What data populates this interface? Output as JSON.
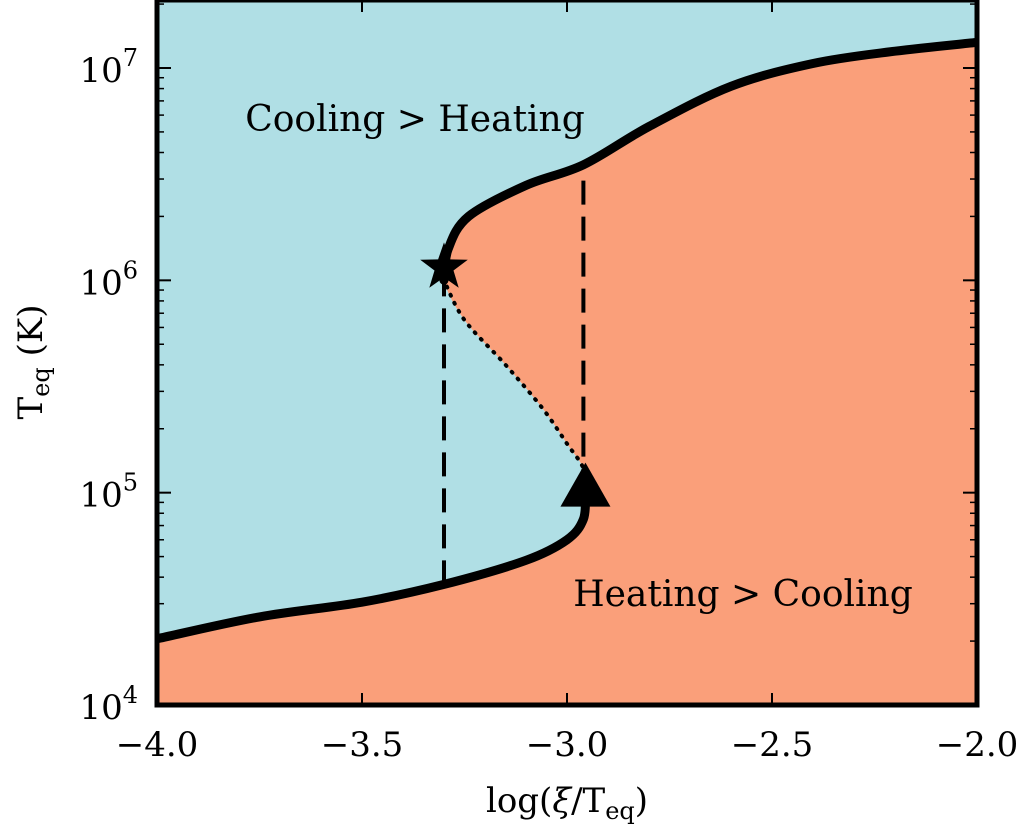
{
  "chart_data": {
    "type": "line",
    "title": "",
    "xlabel": {
      "base": "log(",
      "symbol": "ξ",
      "mid": "/T",
      "sub": "eq",
      "end": ")"
    },
    "ylabel": {
      "base": "T",
      "sub": "eq",
      "unit": " (K)"
    },
    "xlim": [
      -4.0,
      -2.0
    ],
    "ylim": [
      10000,
      20000000
    ],
    "y_scale": "log",
    "x_ticks": [
      -4.0,
      -3.5,
      -3.0,
      -2.5,
      -2.0
    ],
    "x_tick_labels": [
      "−4.0",
      "−3.5",
      "−3.0",
      "−2.5",
      "−2.0"
    ],
    "y_ticks": [
      {
        "value": 10000,
        "base": "10",
        "exp": "4"
      },
      {
        "value": 100000,
        "base": "10",
        "exp": "5"
      },
      {
        "value": 1000000,
        "base": "10",
        "exp": "6"
      },
      {
        "value": 10000000,
        "base": "10",
        "exp": "7"
      }
    ],
    "colors": {
      "cooling": "#b0dfe5",
      "heating": "#fa9f7a",
      "curve": "#000000"
    },
    "regions": [
      {
        "label": "Cooling > Heating",
        "color": "#b0dfe5"
      },
      {
        "label": "Heating > Cooling",
        "color": "#fa9f7a"
      }
    ],
    "series": [
      {
        "style": "solid",
        "points": [
          [
            -4.0,
            20500
          ],
          [
            -3.75,
            26000
          ],
          [
            -3.5,
            30500
          ],
          [
            -3.3,
            37000
          ],
          [
            -3.1,
            48000
          ],
          [
            -3.0,
            60000
          ],
          [
            -2.96,
            75000
          ],
          [
            -2.955,
            100000
          ]
        ]
      },
      {
        "style": "dotted",
        "points": [
          [
            -2.955,
            100000
          ],
          [
            -2.96,
            130000
          ],
          [
            -3.0,
            170000
          ],
          [
            -3.06,
            250000
          ],
          [
            -3.15,
            400000
          ],
          [
            -3.25,
            650000
          ],
          [
            -3.3,
            1000000
          ]
        ]
      },
      {
        "style": "solid",
        "points": [
          [
            -3.3,
            1000000
          ],
          [
            -3.29,
            1400000
          ],
          [
            -3.24,
            2000000
          ],
          [
            -3.1,
            2800000
          ],
          [
            -2.96,
            3500000
          ],
          [
            -2.8,
            5300000
          ],
          [
            -2.6,
            8200000
          ],
          [
            -2.4,
            10500000
          ],
          [
            -2.2,
            12000000
          ],
          [
            -2.0,
            13200000
          ]
        ]
      }
    ],
    "verticals": [
      {
        "x": -3.3,
        "y_from": 37000,
        "y_to": 1000000,
        "style": "dashed"
      },
      {
        "x": -2.96,
        "y_from": 100000,
        "y_to": 3500000,
        "style": "dashed"
      }
    ],
    "markers": [
      {
        "shape": "star",
        "x": -3.3,
        "y": 1150000
      },
      {
        "shape": "triangle",
        "x": -2.955,
        "y": 100000
      }
    ]
  }
}
